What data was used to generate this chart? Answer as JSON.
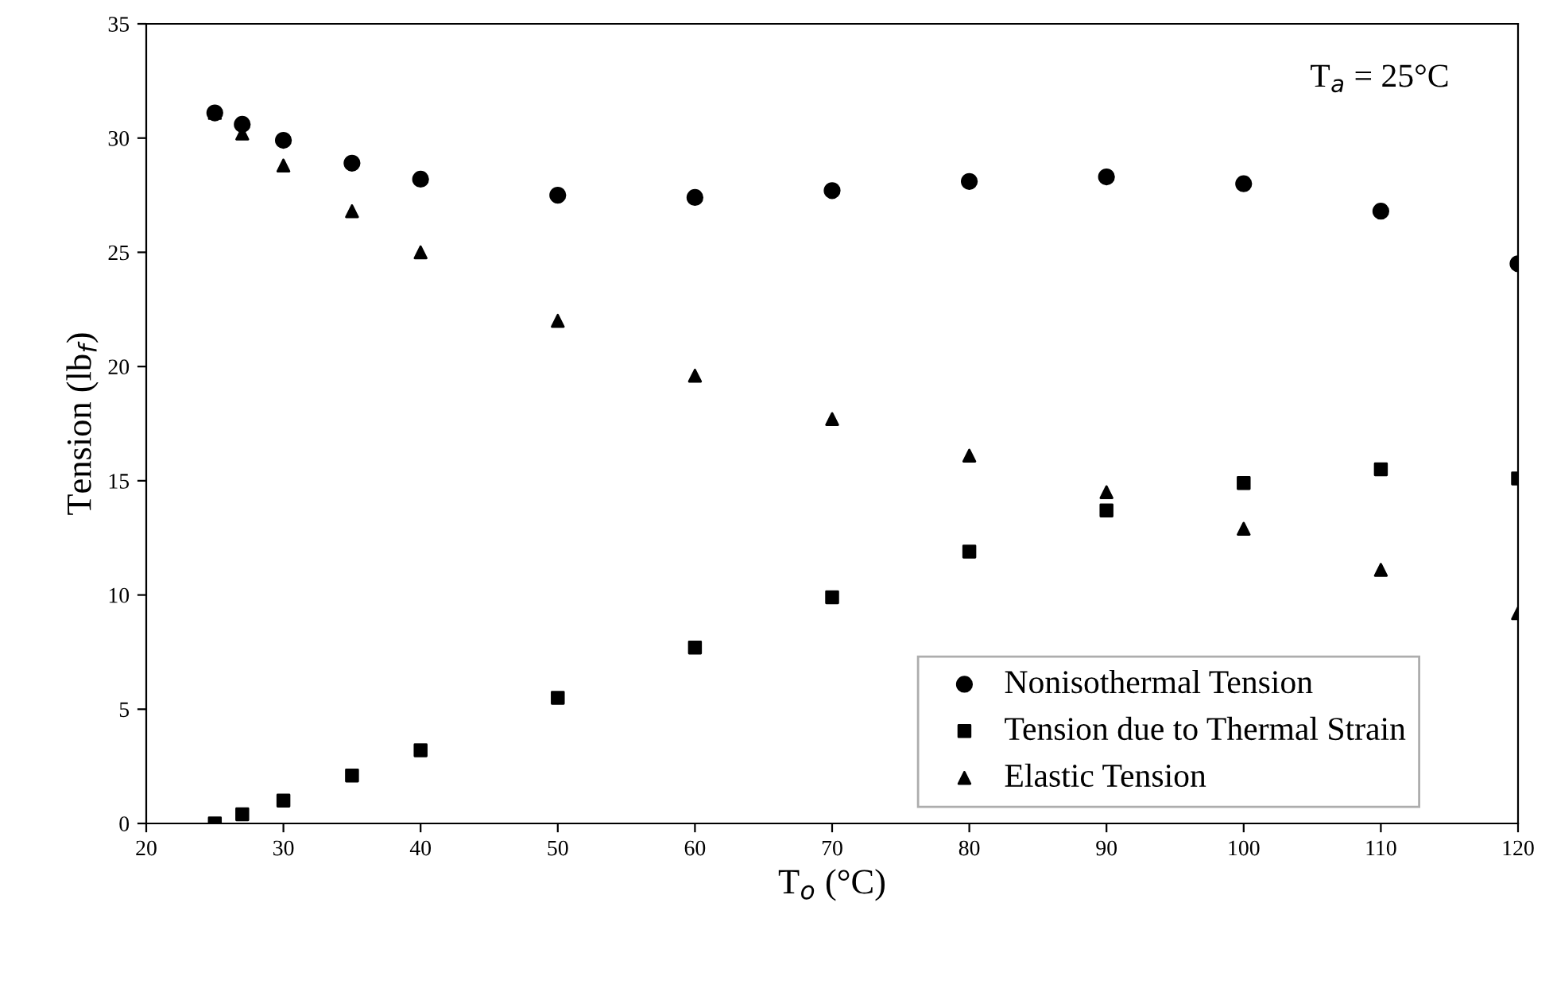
{
  "chart_data": {
    "type": "scatter",
    "xlabel": "T$_{o}$ (°C)",
    "ylabel": "Tension (lb$_{f}$)",
    "annotations": [
      "T$_{a}$ = 25°C"
    ],
    "x": [
      25,
      27,
      30,
      35,
      40,
      50,
      60,
      70,
      80,
      90,
      100,
      110,
      120
    ],
    "series": [
      {
        "name": "Nonisothermal Tension",
        "color": "#000000",
        "marker": "circle",
        "values": [
          31.1,
          30.6,
          29.9,
          28.9,
          28.2,
          27.5,
          27.4,
          27.7,
          28.1,
          28.3,
          28.0,
          26.8,
          24.5
        ]
      },
      {
        "name": "Tension due to Thermal Strain",
        "color": "#000000",
        "marker": "square",
        "values": [
          0,
          0.4,
          1.0,
          2.1,
          3.2,
          5.5,
          7.7,
          9.9,
          11.9,
          13.7,
          14.9,
          15.5,
          15.1
        ]
      },
      {
        "name": "Elastic Tension",
        "color": "#000000",
        "marker": "triangle",
        "values": [
          31.1,
          30.2,
          28.8,
          26.8,
          25.0,
          22.0,
          19.6,
          17.7,
          16.1,
          14.5,
          12.9,
          11.1,
          9.2
        ]
      }
    ],
    "xlim": [
      20,
      120
    ],
    "xticks": [
      20,
      30,
      40,
      50,
      60,
      70,
      80,
      90,
      100,
      110,
      120
    ],
    "ylim": [
      0,
      35
    ],
    "yticks": [
      0,
      5,
      10,
      15,
      20,
      25,
      30,
      35
    ],
    "grid": false,
    "legend": "bottom right"
  }
}
